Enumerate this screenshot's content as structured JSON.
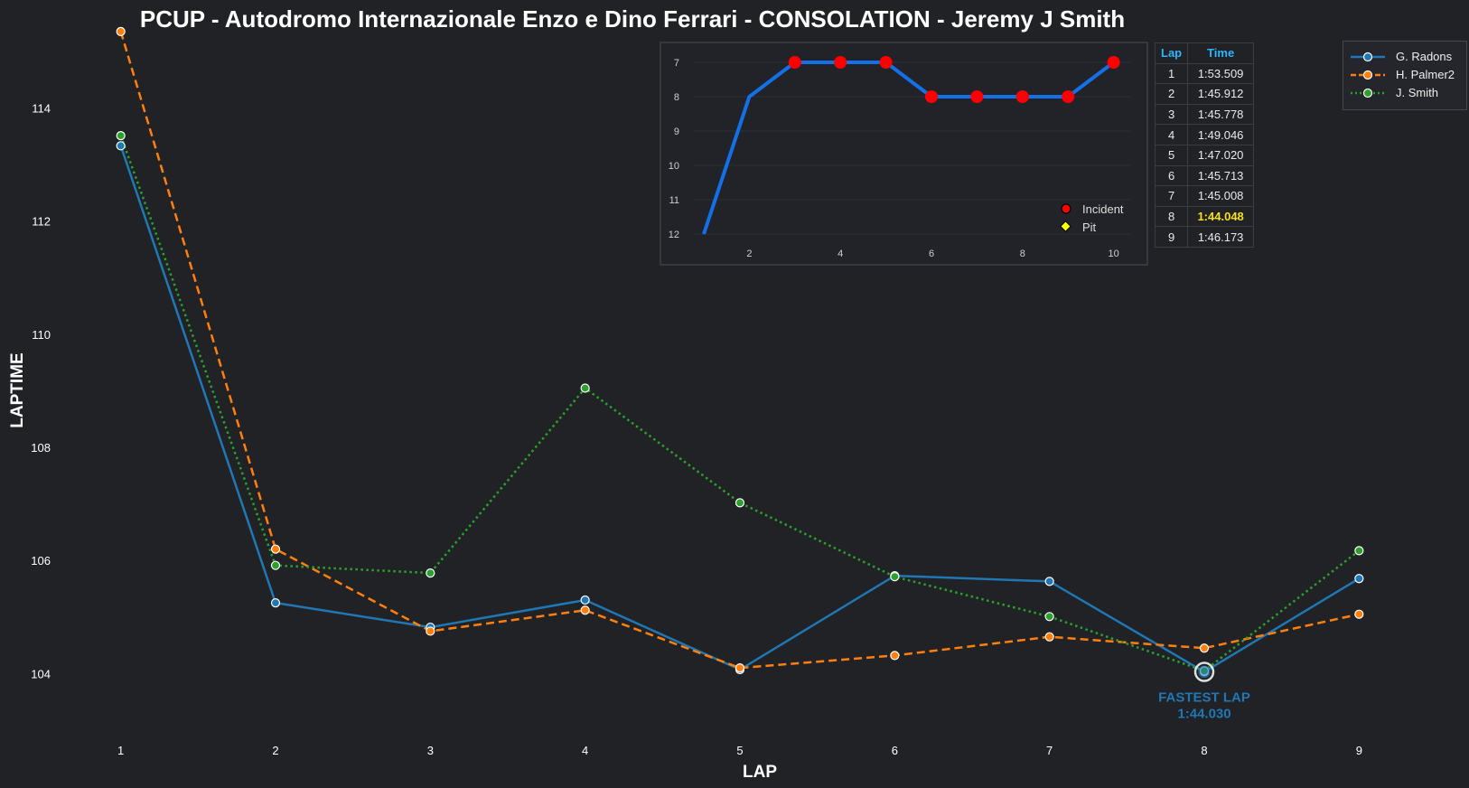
{
  "title": "PCUP - Autodromo Internazionale Enzo e Dino Ferrari - CONSOLATION - Jeremy J Smith",
  "colors": {
    "background": "#202226",
    "radons": "#1f77b4",
    "palmer": "#ff7f0e",
    "smith": "#2ca02c",
    "position_line": "#1470e6",
    "incident": "#ff0000",
    "pit": "#ffff00",
    "table_header": "#2fb4ff",
    "best_lap": "#f5e020"
  },
  "chart_data": [
    {
      "type": "line",
      "xlabel": "LAP",
      "ylabel": "LAPTIME",
      "x": [
        1,
        2,
        3,
        4,
        5,
        6,
        7,
        8,
        9
      ],
      "xlim": [
        0.5,
        9.5
      ],
      "ylim": [
        103.0,
        115.3
      ],
      "yticks": [
        104,
        106,
        108,
        110,
        112,
        114
      ],
      "grid": false,
      "legend_position": "top-right",
      "series": [
        {
          "name": "G. Radons",
          "style": "solid",
          "values": [
            113.33,
            105.25,
            104.82,
            105.3,
            104.07,
            105.73,
            105.63,
            104.03,
            105.68
          ]
        },
        {
          "name": "H. Palmer2",
          "style": "dashed",
          "values": [
            115.35,
            106.2,
            104.75,
            105.12,
            104.1,
            104.32,
            104.65,
            104.45,
            105.05
          ]
        },
        {
          "name": "J. Smith",
          "style": "dotted",
          "values": [
            113.509,
            105.912,
            105.778,
            109.046,
            107.02,
            105.713,
            105.008,
            104.048,
            106.173
          ]
        }
      ],
      "annotation": {
        "label": "FASTEST LAP",
        "value": "1:44.030",
        "x": 8,
        "y": 104.03
      }
    },
    {
      "type": "line",
      "x": [
        1,
        2,
        3,
        4,
        5,
        6,
        7,
        8,
        9,
        10
      ],
      "values": [
        12,
        8,
        7,
        7,
        7,
        8,
        8,
        8,
        8,
        7
      ],
      "ylim": [
        12,
        7
      ],
      "yticks": [
        7,
        8,
        9,
        10,
        11,
        12
      ],
      "xticks": [
        2,
        4,
        6,
        8,
        10
      ],
      "incident_laps": [
        3,
        4,
        5,
        6,
        7,
        8,
        9,
        10
      ],
      "legend": [
        "Incident",
        "Pit"
      ],
      "legend_position": "bottom-right"
    },
    {
      "type": "table",
      "columns": [
        "Lap",
        "Time"
      ],
      "rows": [
        [
          "1",
          "1:53.509"
        ],
        [
          "2",
          "1:45.912"
        ],
        [
          "3",
          "1:45.778"
        ],
        [
          "4",
          "1:49.046"
        ],
        [
          "5",
          "1:47.020"
        ],
        [
          "6",
          "1:45.713"
        ],
        [
          "7",
          "1:45.008"
        ],
        [
          "8",
          "1:44.048"
        ],
        [
          "9",
          "1:46.173"
        ]
      ],
      "best_row": 7
    }
  ]
}
